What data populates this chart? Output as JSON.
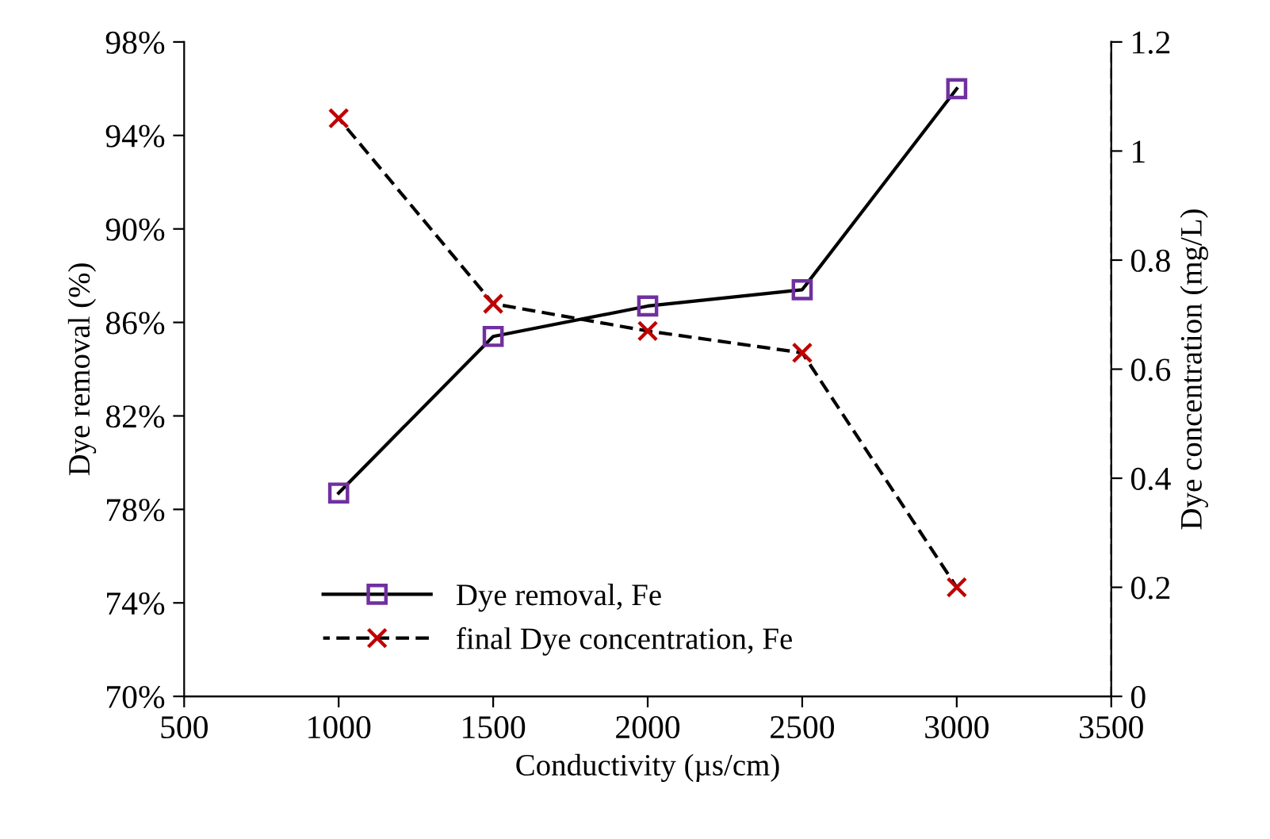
{
  "chart_data": {
    "type": "line",
    "xlabel": "Conductivity (µs/cm)",
    "ylabel": "Dye removal (%)",
    "y2label": "Dye concentration (mg/L)",
    "x": [
      1000,
      1500,
      2000,
      2500,
      3000
    ],
    "series": [
      {
        "name": "Dye removal, Fe",
        "color": "#7030a0",
        "marker": "square",
        "line_style": "solid",
        "values": [
          78.7,
          85.4,
          86.7,
          87.4,
          96.0
        ]
      },
      {
        "name": "final Dye concentration, Fe",
        "color": "#c00000",
        "marker": "cross",
        "line_style": "dashed",
        "axis": "y2",
        "values": [
          1.06,
          0.72,
          0.67,
          0.63,
          0.2
        ]
      }
    ],
    "xlim": [
      500,
      3500
    ],
    "xticks": [
      500,
      1000,
      1500,
      2000,
      2500,
      3000,
      3500
    ],
    "ylim": [
      70,
      98
    ],
    "yticks": [
      {
        "value": 70,
        "label": "70%"
      },
      {
        "value": 74,
        "label": "74%"
      },
      {
        "value": 78,
        "label": "78%"
      },
      {
        "value": 82,
        "label": "82%"
      },
      {
        "value": 86,
        "label": "86%"
      },
      {
        "value": 90,
        "label": "90%"
      },
      {
        "value": 94,
        "label": "94%"
      },
      {
        "value": 98,
        "label": "98%"
      }
    ],
    "y2lim": [
      0,
      1.2
    ],
    "y2ticks": [
      0,
      0.2,
      0.4,
      0.6,
      0.8,
      1,
      1.2
    ],
    "grid": false,
    "legend": "bottom left"
  }
}
